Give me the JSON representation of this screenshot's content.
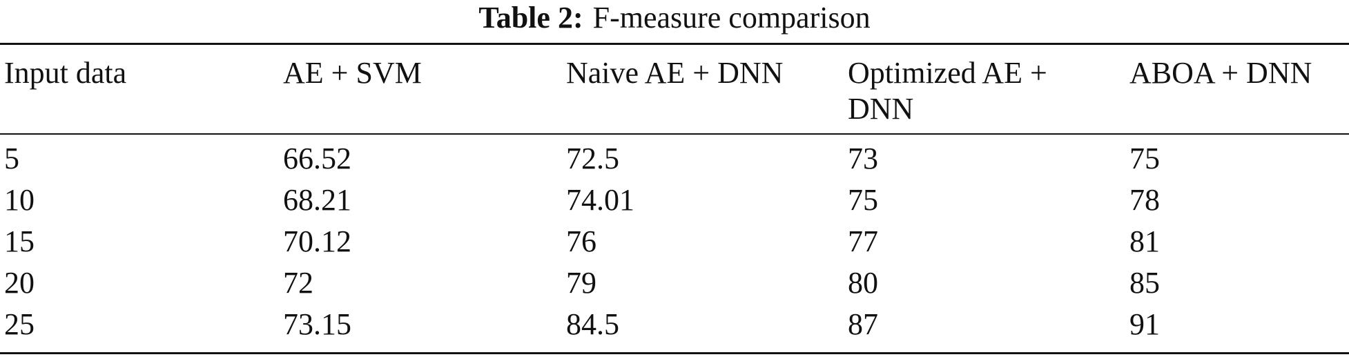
{
  "caption": {
    "label": "Table 2:",
    "text": "F-measure comparison"
  },
  "table": {
    "headers": [
      "Input data",
      "AE + SVM",
      "Naive AE + DNN",
      "Optimized AE + DNN",
      "ABOA + DNN"
    ],
    "rows": [
      [
        "5",
        "66.52",
        "72.5",
        "73",
        "75"
      ],
      [
        "10",
        "68.21",
        "74.01",
        "75",
        "78"
      ],
      [
        "15",
        "70.12",
        "76",
        "77",
        "81"
      ],
      [
        "20",
        "72",
        "79",
        "80",
        "85"
      ],
      [
        "25",
        "73.15",
        "84.5",
        "87",
        "91"
      ]
    ]
  }
}
